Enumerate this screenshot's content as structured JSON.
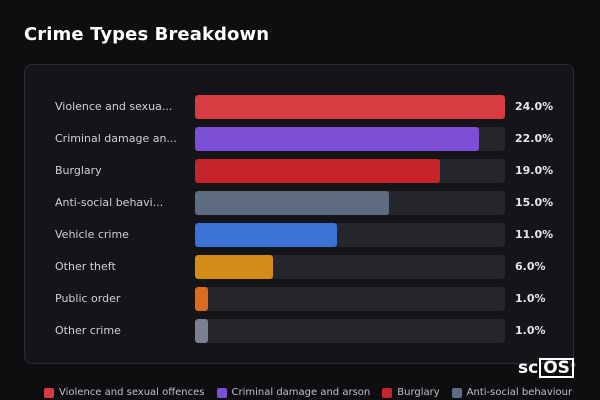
{
  "page_title": "Crime Types Breakdown",
  "chart_data": {
    "type": "bar",
    "orientation": "horizontal",
    "title": "Crime Types Breakdown",
    "xlabel": "",
    "ylabel": "",
    "xlim": [
      0,
      24
    ],
    "grid": false,
    "legend_position": "bottom",
    "rows": [
      {
        "label": "Violence and sexua...",
        "full_name": "Violence and sexual offences",
        "value": 24.0,
        "display": "24.0%",
        "color": "#d63c41"
      },
      {
        "label": "Criminal damage an...",
        "full_name": "Criminal damage and arson",
        "value": 22.0,
        "display": "22.0%",
        "color": "#7b4fd6"
      },
      {
        "label": "Burglary",
        "full_name": "Burglary",
        "value": 19.0,
        "display": "19.0%",
        "color": "#c4242a"
      },
      {
        "label": "Anti-social behavi...",
        "full_name": "Anti-social behaviour",
        "value": 15.0,
        "display": "15.0%",
        "color": "#5f6b7e"
      },
      {
        "label": "Vehicle crime",
        "full_name": "Vehicle crime",
        "value": 11.0,
        "display": "11.0%",
        "color": "#3a73d4"
      },
      {
        "label": "Other theft",
        "full_name": "Other theft",
        "value": 6.0,
        "display": "6.0%",
        "color": "#d38b1a"
      },
      {
        "label": "Public order",
        "full_name": "Public order",
        "value": 1.0,
        "display": "1.0%",
        "color": "#dc6b22"
      },
      {
        "label": "Other crime",
        "full_name": "Other crime",
        "value": 1.0,
        "display": "1.0%",
        "color": "#7a8091"
      }
    ],
    "legend": [
      {
        "label": "Violence and sexual offences",
        "color": "#d63c41"
      },
      {
        "label": "Criminal damage and arson",
        "color": "#7b4fd6"
      },
      {
        "label": "Burglary",
        "color": "#c4242a"
      },
      {
        "label": "Anti-social behaviour",
        "color": "#5f6b7e"
      }
    ]
  },
  "logo": {
    "text_sc": "sc",
    "text_os": "OS",
    "mark": "®"
  }
}
